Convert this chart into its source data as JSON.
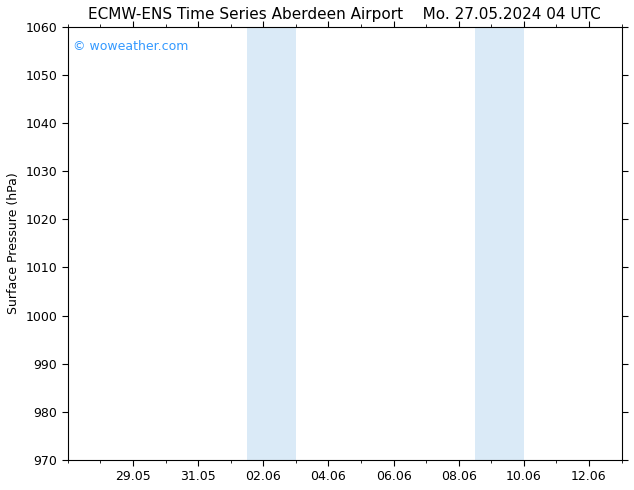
{
  "title_left": "ECMW-ENS Time Series Aberdeen Airport",
  "title_right": "Mo. 27.05.2024 04 UTC",
  "ylabel": "Surface Pressure (hPa)",
  "ylim": [
    970,
    1060
  ],
  "yticks": [
    970,
    980,
    990,
    1000,
    1010,
    1020,
    1030,
    1040,
    1050,
    1060
  ],
  "total_days": 17,
  "xtick_labels": [
    "29.05",
    "31.05",
    "02.06",
    "04.06",
    "06.06",
    "08.06",
    "10.06",
    "12.06"
  ],
  "xtick_positions": [
    2,
    4,
    6,
    8,
    10,
    12,
    14,
    16
  ],
  "shade_bands": [
    {
      "start_day": 5.5,
      "end_day": 7.0
    },
    {
      "start_day": 12.5,
      "end_day": 14.0
    }
  ],
  "shade_color": "#daeaf7",
  "background_color": "#ffffff",
  "plot_bg_color": "#ffffff",
  "watermark_text": "© woweather.com",
  "watermark_color": "#3399ff",
  "title_fontsize": 11,
  "tick_fontsize": 9,
  "ylabel_fontsize": 9
}
